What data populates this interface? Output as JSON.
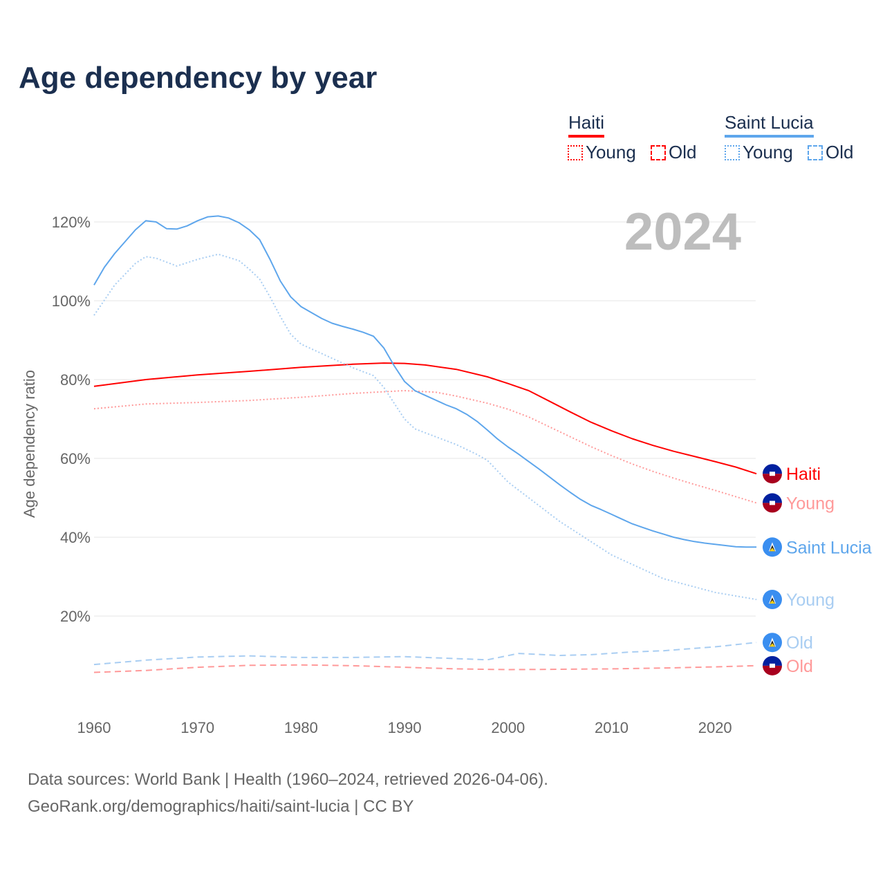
{
  "title": "Age dependency by year",
  "year_label": "2024",
  "legend": {
    "countries": [
      {
        "name": "Haiti",
        "color": "#ff0000",
        "items": [
          "Young",
          "Old"
        ]
      },
      {
        "name": "Saint Lucia",
        "color": "#5ea6ec",
        "items": [
          "Young",
          "Old"
        ]
      }
    ]
  },
  "source": {
    "line1": "Data sources: World Bank | Health (1960–2024, retrieved 2026-04-06).",
    "line2": "GeoRank.org/demographics/haiti/saint-lucia | CC BY"
  },
  "chart_data": {
    "type": "line",
    "title": "Age dependency by year",
    "xlabel": "",
    "ylabel": "Age dependency ratio",
    "xlim": [
      1960,
      2024
    ],
    "ylim": [
      0,
      125
    ],
    "xticks": [
      1960,
      1970,
      1980,
      1990,
      2000,
      2010,
      2020
    ],
    "yticks": [
      20,
      40,
      60,
      80,
      100,
      120
    ],
    "ytick_labels": [
      "20%",
      "40%",
      "60%",
      "80%",
      "100%",
      "120%"
    ],
    "grid": true,
    "legend_position": "top-right",
    "series": [
      {
        "name": "Haiti",
        "end_label": "Haiti",
        "country": "Haiti",
        "style": "solid",
        "color": "#ff0000",
        "x": [
          1960,
          1965,
          1970,
          1975,
          1980,
          1985,
          1988,
          1990,
          1992,
          1995,
          1998,
          2000,
          2002,
          2004,
          2006,
          2008,
          2010,
          2012,
          2014,
          2016,
          2018,
          2020,
          2022,
          2024
        ],
        "y": [
          78.3,
          80,
          81.2,
          82.1,
          83.1,
          83.9,
          84.2,
          84.1,
          83.7,
          82.6,
          80.7,
          79,
          77.2,
          74.5,
          71.8,
          69.2,
          67,
          65,
          63.3,
          61.8,
          60.5,
          59.2,
          57.8,
          56.1
        ]
      },
      {
        "name": "Haiti Young",
        "end_label": "Young",
        "country": "Haiti",
        "style": "dotted",
        "color": "#ff9999",
        "x": [
          1960,
          1965,
          1970,
          1975,
          1980,
          1985,
          1990,
          1993,
          1995,
          1998,
          2000,
          2002,
          2004,
          2006,
          2008,
          2010,
          2012,
          2014,
          2016,
          2018,
          2020,
          2022,
          2024
        ],
        "y": [
          72.6,
          73.8,
          74.2,
          74.7,
          75.5,
          76.5,
          77.2,
          76.8,
          75.8,
          74,
          72.5,
          70.5,
          68,
          65.5,
          63,
          60.7,
          58.6,
          56.7,
          55,
          53.4,
          51.9,
          50.3,
          48.7
        ]
      },
      {
        "name": "Haiti Old",
        "end_label": "Old",
        "country": "Haiti",
        "style": "dashed",
        "color": "#ff9999",
        "x": [
          1960,
          1965,
          1970,
          1975,
          1980,
          1985,
          1990,
          1995,
          2000,
          2005,
          2010,
          2015,
          2020,
          2024
        ],
        "y": [
          5.7,
          6.2,
          7,
          7.5,
          7.6,
          7.4,
          7,
          6.6,
          6.4,
          6.5,
          6.6,
          6.8,
          7.1,
          7.4
        ]
      },
      {
        "name": "Saint Lucia",
        "end_label": "Saint Lucia",
        "country": "Saint Lucia",
        "style": "solid",
        "color": "#5ea6ec",
        "x": [
          1960,
          1961,
          1962,
          1963,
          1964,
          1965,
          1966,
          1967,
          1968,
          1969,
          1970,
          1971,
          1972,
          1973,
          1974,
          1975,
          1976,
          1977,
          1978,
          1979,
          1980,
          1981,
          1982,
          1983,
          1984,
          1985,
          1986,
          1987,
          1988,
          1989,
          1990,
          1991,
          1992,
          1993,
          1994,
          1995,
          1996,
          1997,
          1998,
          1999,
          2000,
          2001,
          2002,
          2003,
          2004,
          2005,
          2006,
          2007,
          2008,
          2009,
          2010,
          2011,
          2012,
          2013,
          2014,
          2015,
          2016,
          2017,
          2018,
          2019,
          2020,
          2021,
          2022,
          2023,
          2024
        ],
        "y": [
          104,
          108.5,
          112,
          115,
          118,
          120.3,
          120,
          118.3,
          118.2,
          119,
          120.3,
          121.3,
          121.5,
          121,
          119.8,
          118,
          115.5,
          110.5,
          105,
          101,
          98.5,
          97,
          95.5,
          94.3,
          93.5,
          92.8,
          92,
          91,
          88,
          83.5,
          79.5,
          77.2,
          76,
          74.8,
          73.6,
          72.6,
          71.2,
          69.4,
          67.2,
          64.9,
          62.9,
          61.1,
          59.2,
          57.3,
          55.3,
          53.3,
          51.4,
          49.6,
          48.1,
          47,
          45.8,
          44.6,
          43.4,
          42.5,
          41.6,
          40.8,
          40,
          39.4,
          38.9,
          38.5,
          38.2,
          37.9,
          37.6,
          37.5,
          37.5
        ]
      },
      {
        "name": "Saint Lucia Young",
        "end_label": "Young",
        "country": "Saint Lucia",
        "style": "dotted",
        "color": "#a8cdf2",
        "x": [
          1960,
          1962,
          1964,
          1965,
          1966,
          1968,
          1970,
          1972,
          1974,
          1975,
          1976,
          1977,
          1978,
          1979,
          1980,
          1985,
          1987,
          1988,
          1989,
          1990,
          1991,
          1995,
          1997,
          1998,
          2000,
          2005,
          2010,
          2015,
          2020,
          2024
        ],
        "y": [
          96.3,
          104,
          109.5,
          111.2,
          110.8,
          108.8,
          110.5,
          111.8,
          110.2,
          108,
          105.5,
          101,
          96,
          91.5,
          89,
          83,
          81,
          78,
          74,
          70,
          67.5,
          63.5,
          61,
          59.5,
          54,
          44,
          35.5,
          29.5,
          26,
          24.2
        ]
      },
      {
        "name": "Saint Lucia Old",
        "end_label": "Old",
        "country": "Saint Lucia",
        "style": "dashed",
        "color": "#a8cdf2",
        "x": [
          1960,
          1965,
          1970,
          1975,
          1980,
          1985,
          1990,
          1995,
          1998,
          2001,
          2005,
          2008,
          2012,
          2015,
          2020,
          2024
        ],
        "y": [
          7.7,
          8.8,
          9.6,
          9.9,
          9.5,
          9.5,
          9.7,
          9.2,
          8.9,
          10.5,
          10,
          10.2,
          10.9,
          11.2,
          12.2,
          13.3
        ]
      }
    ]
  }
}
